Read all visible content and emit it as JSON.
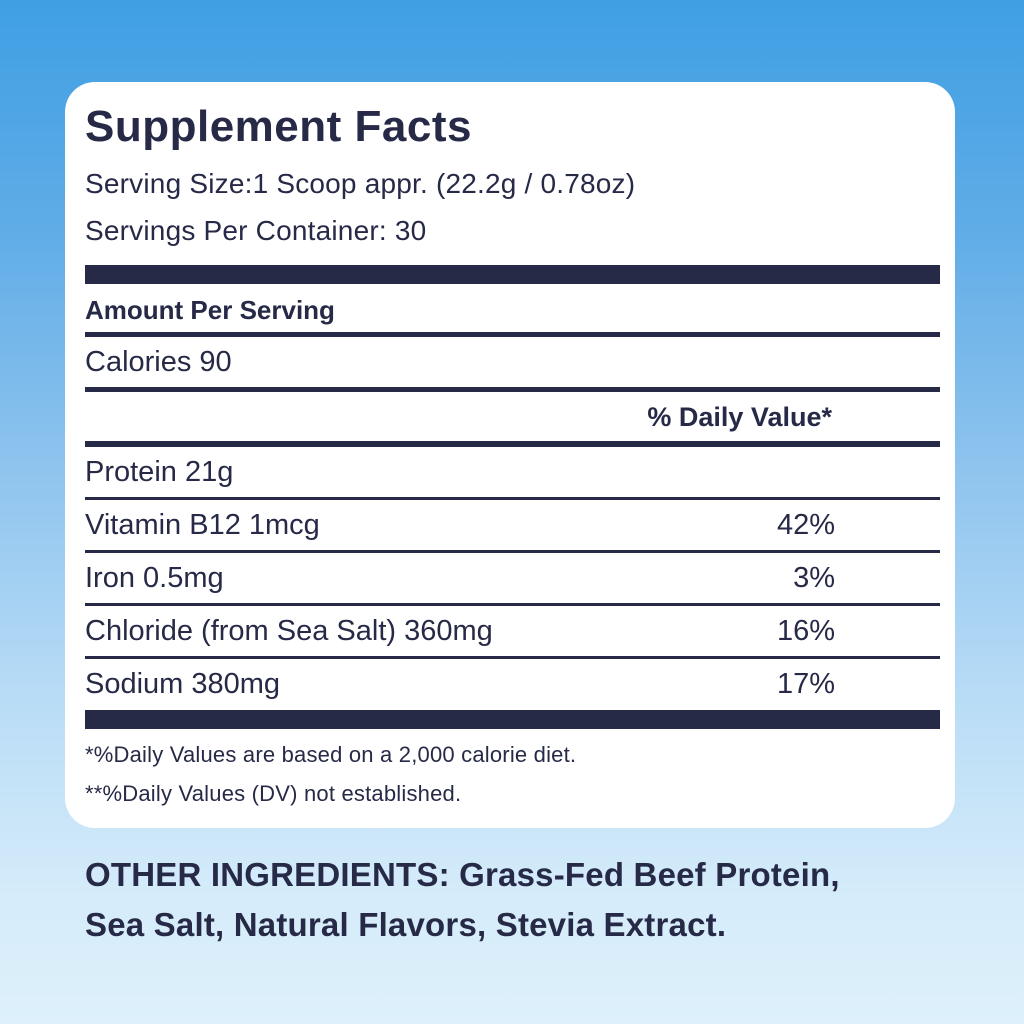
{
  "colors": {
    "background_top": "#3F9FE3",
    "background_bottom": "#DDF0FB",
    "card": "#FFFFFF",
    "navy_text": "#262A47"
  },
  "label": {
    "title": "Supplement Facts",
    "serving_size": "Serving Size:1 Scoop appr. (22.2g / 0.78oz)",
    "servings_per_container": "Servings Per Container: 30",
    "amount_per_serving": "Amount Per Serving",
    "calories": "Calories 90",
    "daily_value_header": "% Daily Value*",
    "rows": [
      {
        "name": "Protein 21g",
        "dv": ""
      },
      {
        "name": "Vitamin B12 1mcg",
        "dv": "42%"
      },
      {
        "name": "Iron 0.5mg",
        "dv": "3%"
      },
      {
        "name": "Chloride (from Sea Salt) 360mg",
        "dv": "16%"
      },
      {
        "name": "Sodium 380mg",
        "dv": "17%"
      }
    ],
    "footnotes": [
      "*%Daily Values are based on a 2,000 calorie diet.",
      "**%Daily Values (DV) not established."
    ]
  },
  "other_ingredients": "OTHER INGREDIENTS: Grass-Fed Beef Protein,\nSea Salt, Natural Flavors, Stevia Extract."
}
